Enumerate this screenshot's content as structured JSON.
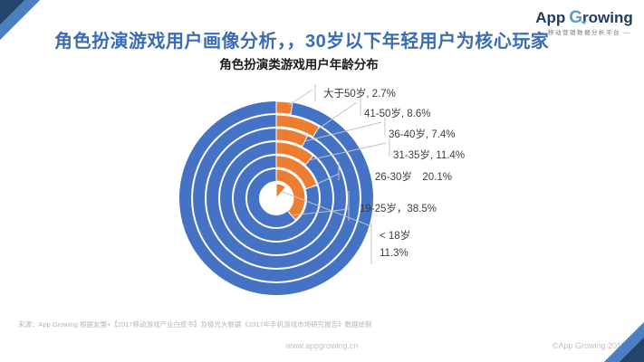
{
  "header": {
    "title": "角色扮演游戏用户画像分析，，30岁以下年轻用户为核心玩家",
    "logo": {
      "part1": "App",
      "part2": "G",
      "part3": "rowing",
      "tagline": "— 移动营销数据分析平台 —"
    }
  },
  "chart_data": {
    "type": "bar",
    "variant": "radial-concentric-rings",
    "title": "角色扮演类游戏用户年龄分布",
    "categories": [
      "大于50岁",
      "41-50岁",
      "36-40岁",
      "31-35岁",
      "26-30岁",
      "19-25岁",
      "<18岁"
    ],
    "values": [
      2.7,
      8.6,
      7.4,
      11.4,
      20.1,
      38.5,
      11.3
    ],
    "unit": "%",
    "layout_hints": {
      "ring_order": "outermost = 大于50岁, innermost center wedge = <18岁",
      "start_angle": "12 o'clock",
      "direction": "clockwise",
      "legend": "none, direct callout labels with leader lines"
    },
    "callout_labels": [
      "大于50岁, 2.7%",
      "41-50岁, 8.6%",
      "36-40岁, 7.4%",
      "31-35岁, 11.4%",
      "26-30岁　20.1%",
      "19-25岁，38.5%",
      "< 18岁",
      "11.3%"
    ],
    "colors": {
      "ring_blue": "#4472c4",
      "segment_orange": "#ed7d31",
      "leader_line": "#c4c4c4"
    }
  },
  "theme_colors": {
    "title_blue": "#3a6cb5",
    "logo_navy": "#1d3c5e",
    "logo_light_blue": "#5b9bd5",
    "corner_dark": "#24456b",
    "corner_light": "#4a7fc1"
  },
  "footer": {
    "source": "来源：App Growing 根据友盟+【2017移动游戏产业白皮书】及极光大数据《2017年手机游戏市场研究报告》数据绘制",
    "website": "www.appgrowing.cn",
    "copyright": "©App Growing 2018"
  }
}
